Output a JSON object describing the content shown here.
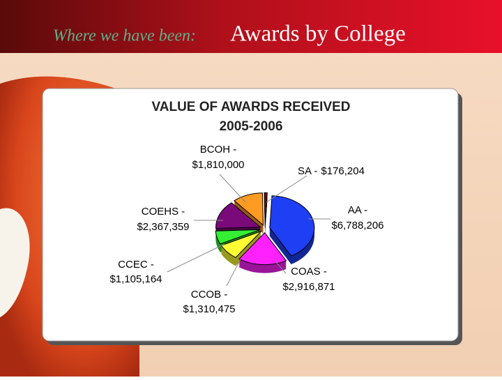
{
  "slide": {
    "kicker": "Where we have been:",
    "title": "Awards by College"
  },
  "chart_data": {
    "type": "pie",
    "title": "VALUE OF AWARDS RECEIVED",
    "subtitle": "2005-2006",
    "categories": [
      "AA -",
      "COAS -",
      "CCOB -",
      "CCEC -",
      "COEHS -",
      "BCOH -",
      "SA -"
    ],
    "values": [
      6788206,
      2916871,
      1310475,
      1105164,
      2367359,
      1810000,
      176204
    ],
    "value_labels": [
      "$6,788,206",
      "$2,916,871",
      "$1,310,475",
      "$1,105,164",
      "$2,367,359",
      "$1,810,000",
      "$176,204"
    ],
    "colors": [
      "#1f3ff5",
      "#ff22ff",
      "#ffff33",
      "#33ee33",
      "#7a0a7a",
      "#ff9a22",
      "#7a0000"
    ]
  }
}
